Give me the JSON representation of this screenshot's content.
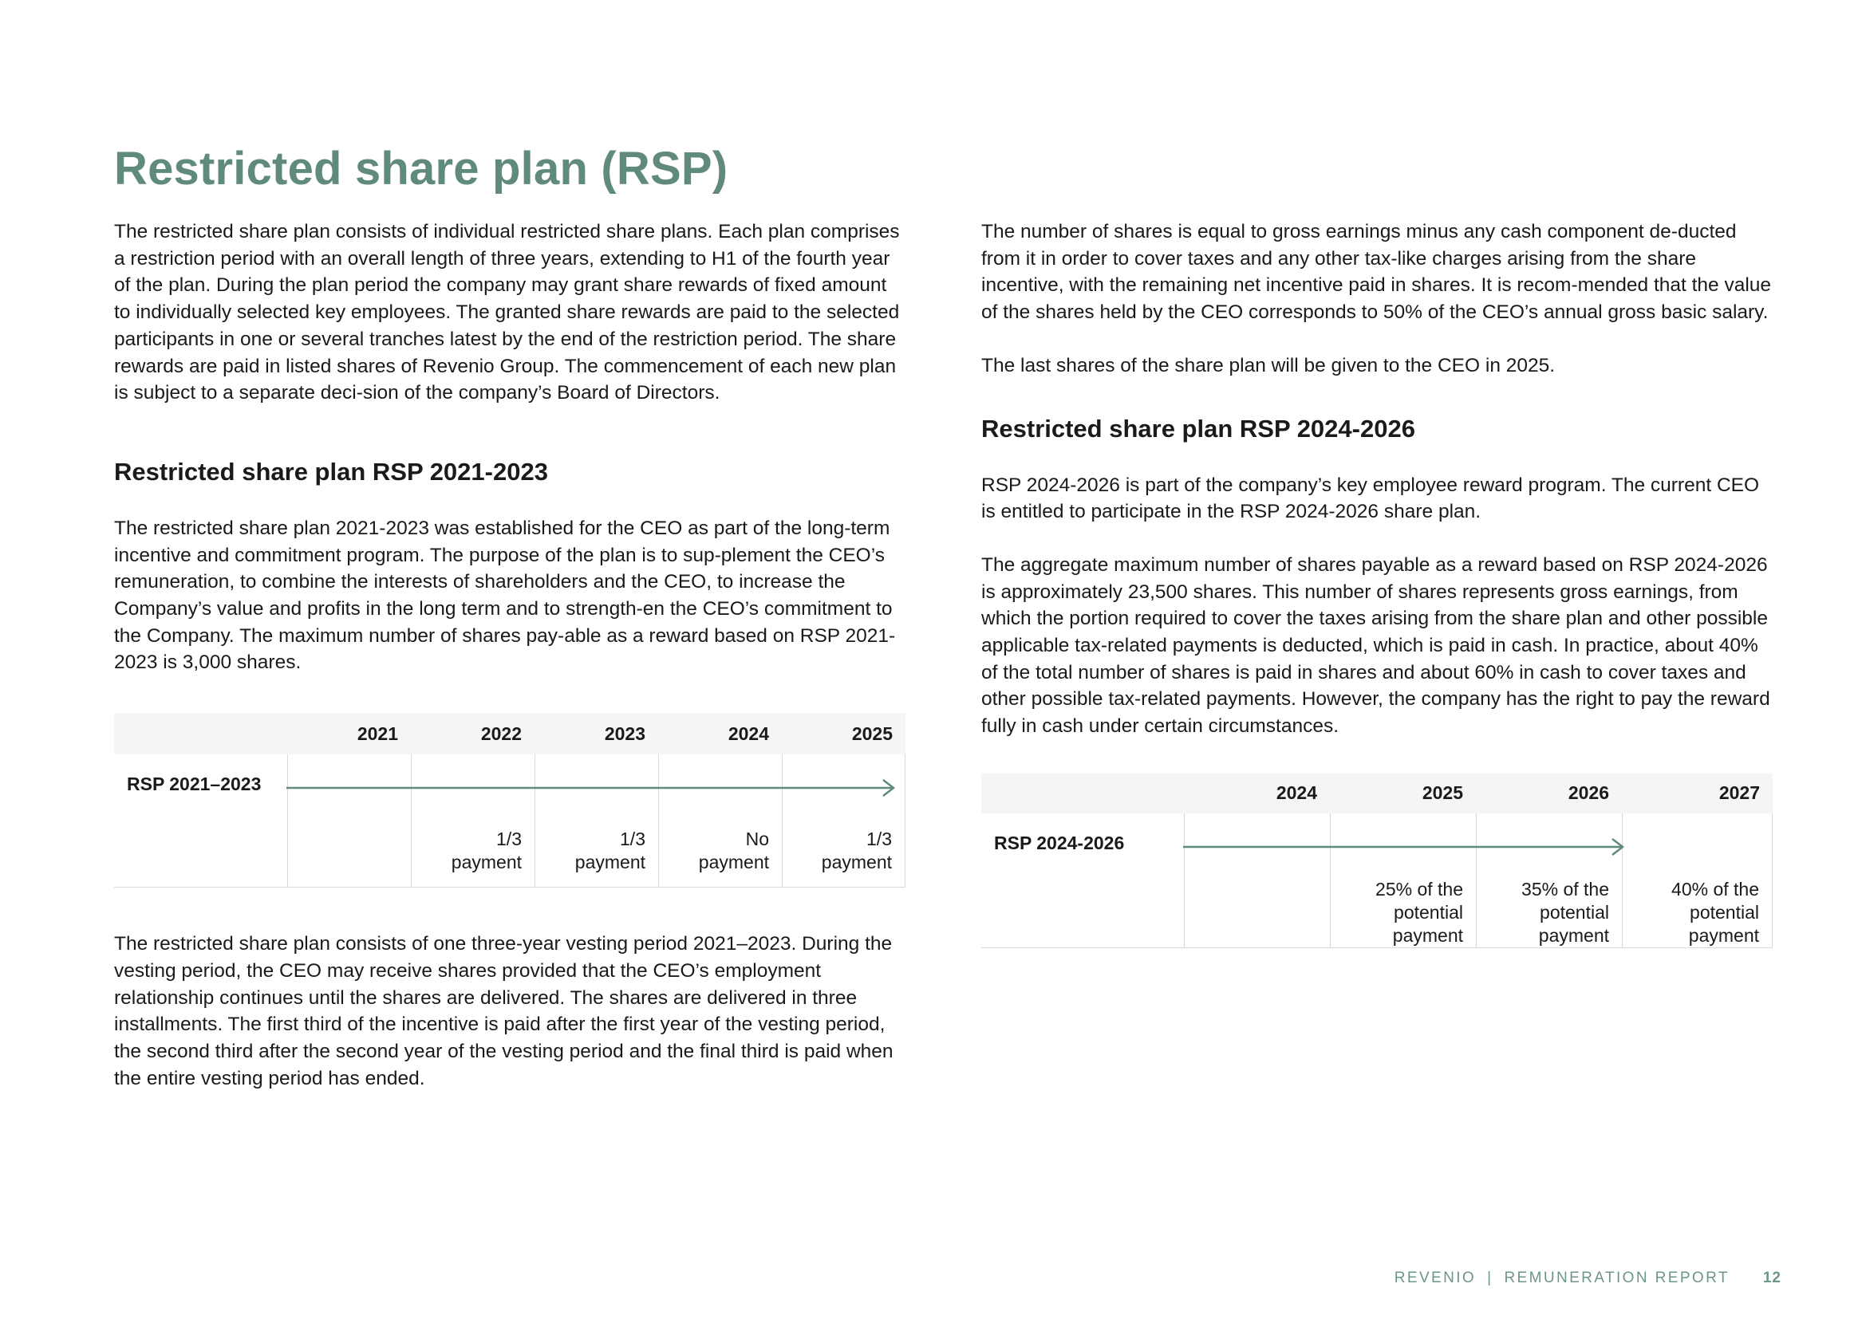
{
  "title": "Restricted share plan (RSP)",
  "left": {
    "intro": "The restricted share plan consists of individual restricted share plans. Each plan comprises a restriction period with an overall length of three years, extending to H1 of the fourth year of the plan. During the plan period the company may grant share rewards of fixed amount to individually selected key employees. The granted share rewards are paid to the selected participants in one or several tranches latest by the end of the restriction period. The share rewards are paid in listed shares of Revenio Group. The commencement of each new plan is subject to a separate deci-sion of the company’s Board of Directors.",
    "heading": "Restricted share plan RSP 2021-2023",
    "para1": "The restricted share plan 2021-2023 was established for the CEO as part of the long-term incentive and commitment program. The purpose of the plan is to sup-plement the CEO’s remuneration, to combine the interests of shareholders and the CEO, to increase the Company’s value and profits in the long term and to strength-en the CEO’s commitment to the Company. The maximum number of shares pay-able as a reward based on RSP 2021-2023 is 3,000 shares.",
    "table": {
      "years": [
        "2021",
        "2022",
        "2023",
        "2024",
        "2025"
      ],
      "row_label": "RSP 2021–2023",
      "payments": [
        [
          "",
          ""
        ],
        [
          "1/3",
          "payment"
        ],
        [
          "1/3",
          "payment"
        ],
        [
          "No",
          "payment"
        ],
        [
          "1/3",
          "payment"
        ]
      ]
    },
    "para2": "The restricted share plan consists of one three-year vesting period 2021–2023. During the vesting period, the CEO may receive shares provided that the CEO’s employment relationship continues until the shares are delivered. The shares are delivered in three installments. The first third of the incentive is paid after the first year of the vesting period, the second third after the second year of the vesting period and the final third is paid when the entire vesting period has ended."
  },
  "right": {
    "para1": "The number of shares is equal to gross earnings minus any cash component de-ducted from it in order to cover taxes and any other tax-like charges arising from the share incentive, with the remaining net incentive paid in shares. It is recom-mended that the value of the shares held by the CEO corresponds to 50% of the CEO’s annual gross basic salary.",
    "para2": "The last shares of the share plan will be given to the CEO in 2025.",
    "heading": "Restricted share plan RSP 2024-2026",
    "para3": "RSP 2024-2026 is part of the company’s key employee reward program. The current CEO is entitled to participate in the RSP 2024-2026 share plan.",
    "para4": "The aggregate maximum number of shares payable as a reward based on RSP 2024-2026 is approximately 23,500 shares. This number of shares represents gross earnings, from which the portion required to cover the taxes arising from the share plan and other possible applicable tax-related payments is deducted, which is paid in cash. In practice, about 40% of the total number of shares is paid in shares and about 60% in cash to cover taxes and other possible tax-related payments. However, the company has the right to pay the reward fully in cash under certain circumstances.",
    "table": {
      "years": [
        "2024",
        "2025",
        "2026",
        "2027"
      ],
      "row_label": "RSP 2024-2026",
      "payments": [
        [
          "",
          "",
          ""
        ],
        [
          "25% of the",
          "potential",
          "payment"
        ],
        [
          "35% of the",
          "potential",
          "payment"
        ],
        [
          "40% of the",
          "potential",
          "payment"
        ]
      ]
    }
  },
  "footer": {
    "brand": "REVENIO",
    "separator": "|",
    "report": "REMUNERATION REPORT",
    "page": "12"
  },
  "colors": {
    "accent": "#5f8a7c",
    "table_header_bg": "#f4f5f6",
    "rule": "#d7d9dc"
  }
}
